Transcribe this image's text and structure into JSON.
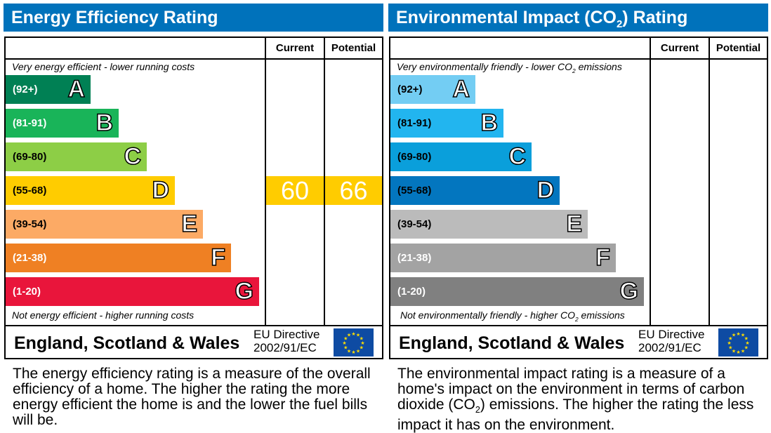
{
  "chart_data": [
    {
      "type": "table",
      "title": "Energy Efficiency Rating",
      "columns": [
        "Current",
        "Potential"
      ],
      "top_note": "Very energy efficient - lower running costs",
      "bottom_note": "Not energy efficient - higher running costs",
      "bands": [
        {
          "range": "(92+)",
          "letter": "A",
          "color": "#008054",
          "text": "#fff"
        },
        {
          "range": "(81-91)",
          "letter": "B",
          "color": "#19b459",
          "text": "#fff"
        },
        {
          "range": "(69-80)",
          "letter": "C",
          "color": "#8dce46",
          "text": "#000"
        },
        {
          "range": "(55-68)",
          "letter": "D",
          "color": "#ffcc00",
          "text": "#000"
        },
        {
          "range": "(39-54)",
          "letter": "E",
          "color": "#fcaa65",
          "text": "#000"
        },
        {
          "range": "(21-38)",
          "letter": "F",
          "color": "#ef8023",
          "text": "#fff"
        },
        {
          "range": "(1-20)",
          "letter": "G",
          "color": "#e9153b",
          "text": "#fff"
        }
      ],
      "current": {
        "value": "60",
        "band": "D"
      },
      "potential": {
        "value": "66",
        "band": "D"
      },
      "region": "England, Scotland & Wales",
      "directive": [
        "EU Directive",
        "2002/91/EC"
      ],
      "description": "The energy efficiency rating is a measure of the overall efficiency of a home. The higher the rating the more energy efficient the home is and the lower the fuel bills will be."
    },
    {
      "type": "table",
      "title": "Environmental Impact (CO2) Rating",
      "columns": [
        "Current",
        "Potential"
      ],
      "top_note": "Very environmentally friendly - lower CO2 emissions",
      "bottom_note": "Not environmentally friendly - higher CO2 emissions",
      "bands": [
        {
          "range": "(92+)",
          "letter": "A",
          "color": "#73cdf3",
          "text": "#000"
        },
        {
          "range": "(81-91)",
          "letter": "B",
          "color": "#22b5ef",
          "text": "#000"
        },
        {
          "range": "(69-80)",
          "letter": "C",
          "color": "#0a9fdb",
          "text": "#000"
        },
        {
          "range": "(55-68)",
          "letter": "D",
          "color": "#0376bf",
          "text": "#000"
        },
        {
          "range": "(39-54)",
          "letter": "E",
          "color": "#bbbbbb",
          "text": "#000"
        },
        {
          "range": "(21-38)",
          "letter": "F",
          "color": "#a3a3a3",
          "text": "#fff"
        },
        {
          "range": "(1-20)",
          "letter": "G",
          "color": "#808080",
          "text": "#fff"
        }
      ],
      "current": null,
      "potential": null,
      "region": "England, Scotland & Wales",
      "directive": [
        "EU Directive",
        "2002/91/EC"
      ],
      "description": "The environmental impact rating is a measure of a home's impact on the environment in terms of carbon dioxide (CO2) emissions. The higher the rating the less impact it has on the environment."
    }
  ]
}
